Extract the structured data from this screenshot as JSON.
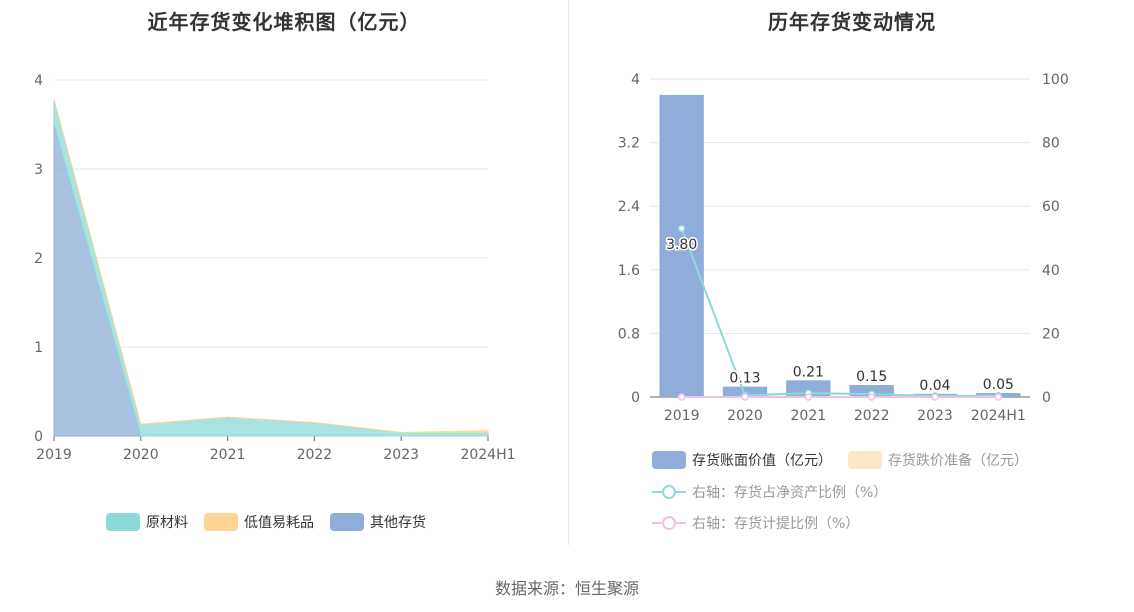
{
  "colors": {
    "raw": "#8bd9d8",
    "lowvalue": "#ffd596",
    "other": "#8eadd8",
    "bar": "#8eadd8",
    "reserve": "#fde8c6",
    "ratio_line": "#8bd9d8",
    "provision_line": "#f0c2e0",
    "grid": "#e3e7ef"
  },
  "chart_data": [
    {
      "type": "area",
      "title": "近年存货变化堆积图（亿元）",
      "categories": [
        "2019",
        "2020",
        "2021",
        "2022",
        "2023",
        "2024H1"
      ],
      "ylim": [
        0,
        4
      ],
      "yticks": [
        "0",
        "1",
        "2",
        "3",
        "4"
      ],
      "series": [
        {
          "name": "其他存货",
          "values": [
            3.5,
            0.0,
            0.0,
            0.0,
            0.0,
            0.0
          ]
        },
        {
          "name": "原材料",
          "values": [
            0.28,
            0.13,
            0.21,
            0.15,
            0.04,
            0.04
          ]
        },
        {
          "name": "低值易耗品",
          "values": [
            0.0,
            0.0,
            0.0,
            0.0,
            0.0,
            0.02
          ]
        }
      ],
      "legend": [
        "原材料",
        "低值易耗品",
        "其他存货"
      ]
    },
    {
      "type": "bar",
      "title": "历年存货变动情况",
      "categories": [
        "2019",
        "2020",
        "2021",
        "2022",
        "2023",
        "2024H1"
      ],
      "ylim_left": [
        0,
        4
      ],
      "yticks_left": [
        "0",
        "0.8",
        "1.6",
        "2.4",
        "3.2",
        "4"
      ],
      "ylim_right": [
        0,
        100
      ],
      "yticks_right": [
        "0",
        "20",
        "40",
        "60",
        "80",
        "100"
      ],
      "bars": {
        "name": "存货账面价值（亿元）",
        "values": [
          3.8,
          0.13,
          0.21,
          0.15,
          0.04,
          0.05
        ],
        "labels": [
          "3.80",
          "0.13",
          "0.21",
          "0.15",
          "0.04",
          "0.05"
        ]
      },
      "reserve": {
        "name": "存货跌价准备（亿元）",
        "values": [
          0,
          0,
          0,
          0,
          0,
          0
        ]
      },
      "lines": [
        {
          "name": "右轴：存货占净资产比例（%）",
          "values": [
            53,
            0.5,
            1.2,
            0.9,
            0.3,
            0.4
          ]
        },
        {
          "name": "右轴：存货计提比例（%）",
          "values": [
            0,
            0,
            0,
            0,
            0,
            0
          ]
        }
      ]
    }
  ],
  "source_text": "数据来源：恒生聚源"
}
